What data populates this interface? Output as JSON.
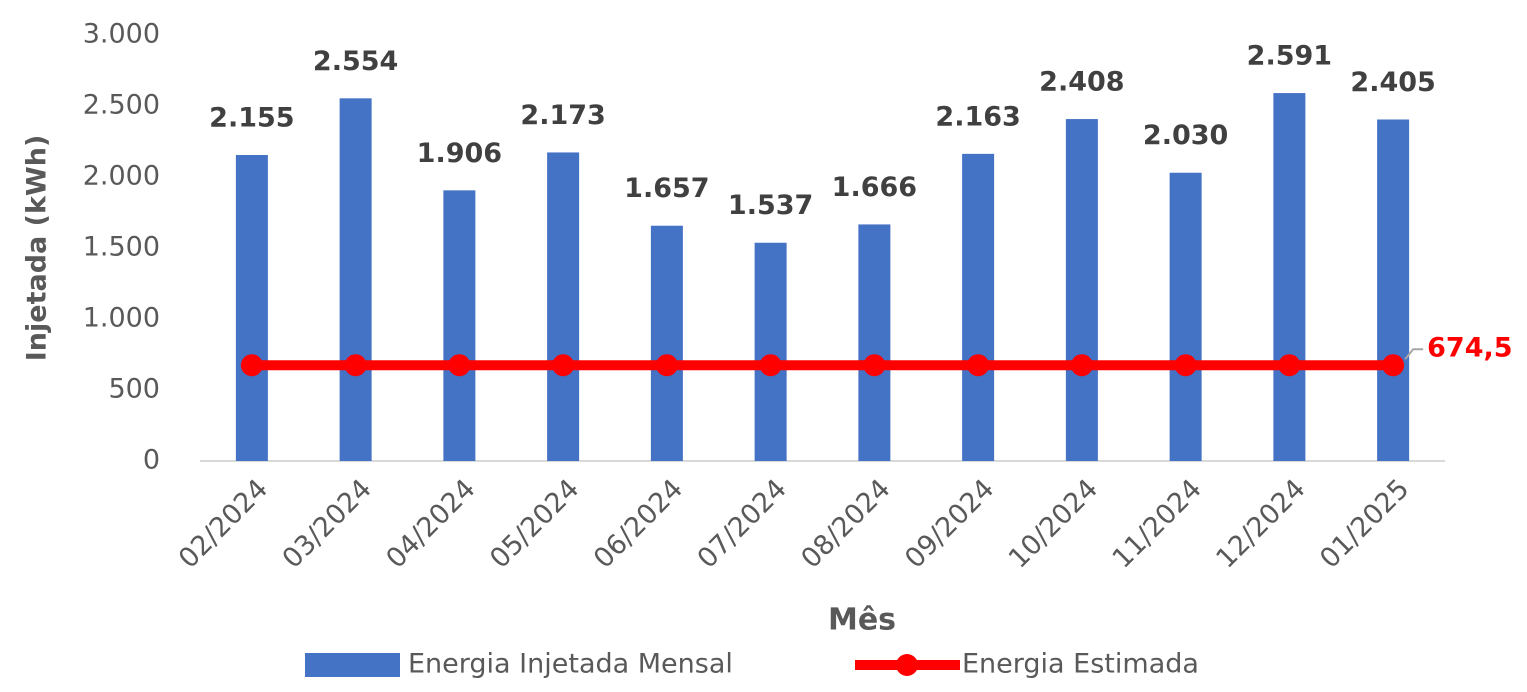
{
  "chart_data": {
    "type": "bar",
    "y_label": "Injetada (kWh)",
    "x_label": "Mês",
    "categories": [
      "02/2024",
      "03/2024",
      "04/2024",
      "05/2024",
      "06/2024",
      "07/2024",
      "08/2024",
      "09/2024",
      "10/2024",
      "11/2024",
      "12/2024",
      "01/2025"
    ],
    "series": [
      {
        "name": "Energia Injetada Mensal",
        "type": "bar",
        "color": "#4472c4",
        "values": [
          2155,
          2554,
          1906,
          2173,
          1657,
          1537,
          1666,
          2163,
          2408,
          2030,
          2591,
          2405
        ],
        "value_labels": [
          "2.155",
          "2.554",
          "1.906",
          "2.173",
          "1.657",
          "1.537",
          "1.666",
          "2.163",
          "2.408",
          "2.030",
          "2.591",
          "2.405"
        ]
      },
      {
        "name": "Energia Estimada",
        "type": "line",
        "color": "#ff0000",
        "values": [
          674.5,
          674.5,
          674.5,
          674.5,
          674.5,
          674.5,
          674.5,
          674.5,
          674.5,
          674.5,
          674.5,
          674.5
        ],
        "value_labels": [
          null,
          null,
          null,
          null,
          null,
          null,
          null,
          null,
          null,
          null,
          null,
          "674,5"
        ]
      }
    ],
    "ylim": [
      0,
      3000
    ],
    "yticks": [
      0,
      500,
      {
        "value": 1000,
        "label": "1.000"
      },
      {
        "value": 1500,
        "label": "1.500"
      },
      {
        "value": 2000,
        "label": "2.000"
      },
      {
        "value": 2500,
        "label": "2.500"
      },
      {
        "value": 3000,
        "label": "3.000"
      }
    ],
    "grid": false,
    "legend": "bottom"
  }
}
